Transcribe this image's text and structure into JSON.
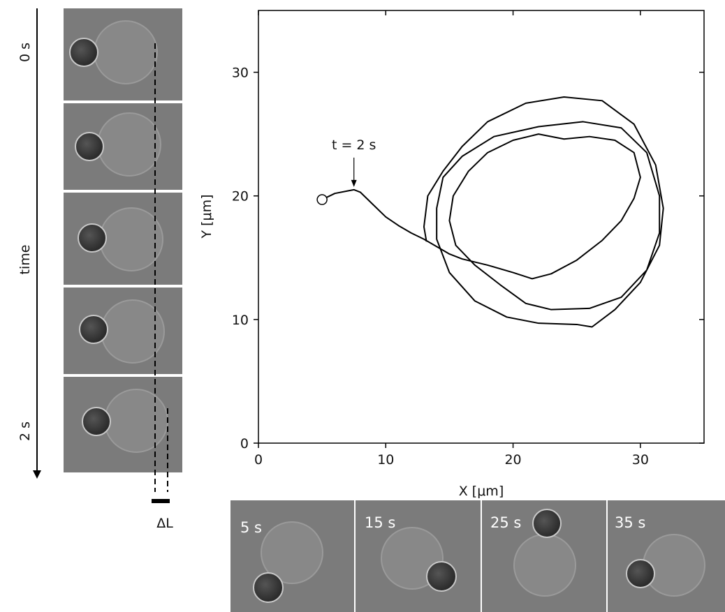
{
  "chart_data": {
    "type": "line",
    "color": "#000000",
    "xlabel": "X [μm]",
    "ylabel": "Y [μm]",
    "xlim": [
      0,
      35
    ],
    "ylim": [
      0,
      35
    ],
    "xticks": [
      0,
      10,
      20,
      30
    ],
    "yticks": [
      0,
      10,
      20,
      30
    ],
    "x": [
      5,
      6,
      7,
      7.5,
      8,
      9,
      10,
      11,
      12,
      13,
      14,
      15,
      16,
      18,
      20,
      21.5,
      23,
      25,
      27,
      28.5,
      29.5,
      30,
      29.5,
      28,
      26,
      24,
      22,
      20,
      18,
      16.5,
      15.3,
      15,
      15.5,
      17,
      19,
      21,
      23,
      26,
      28.5,
      30.5,
      31.5,
      31.5,
      30.5,
      28.5,
      25.5,
      22,
      18.5,
      16,
      14.5,
      14,
      14,
      15,
      17,
      19.5,
      22,
      25,
      26.2,
      28,
      30,
      31.5,
      31.8,
      31.2,
      29.5,
      27,
      24,
      21,
      18,
      16,
      14.5,
      13.3,
      13,
      13.2
    ],
    "values": [
      19.7,
      20.2,
      20.4,
      20.5,
      20.3,
      19.3,
      18.3,
      17.6,
      17.0,
      16.5,
      15.9,
      15.3,
      14.9,
      14.4,
      13.8,
      13.3,
      13.7,
      14.8,
      16.4,
      18,
      19.8,
      21.5,
      23.5,
      24.5,
      24.8,
      24.6,
      25,
      24.5,
      23.5,
      22,
      20,
      18,
      16,
      14.4,
      12.8,
      11.3,
      10.8,
      10.9,
      11.8,
      14,
      17,
      20,
      23.5,
      25.5,
      26,
      25.6,
      24.8,
      23.2,
      21.5,
      19,
      16.5,
      13.8,
      11.5,
      10.2,
      9.7,
      9.6,
      9.4,
      10.8,
      13,
      16,
      19,
      22.5,
      25.8,
      27.7,
      28,
      27.5,
      26,
      24,
      22,
      20,
      17.5,
      16.3
    ],
    "annotations": [
      {
        "text": "t = 2 s",
        "x": 7.5,
        "y": 20.5
      }
    ]
  },
  "figure": {
    "left_labels": [
      "0 s",
      "time",
      "2 s"
    ],
    "delta_label": "ΔL",
    "bottom_frames": [
      "5 s",
      "15 s",
      "25 s",
      "35 s"
    ]
  }
}
